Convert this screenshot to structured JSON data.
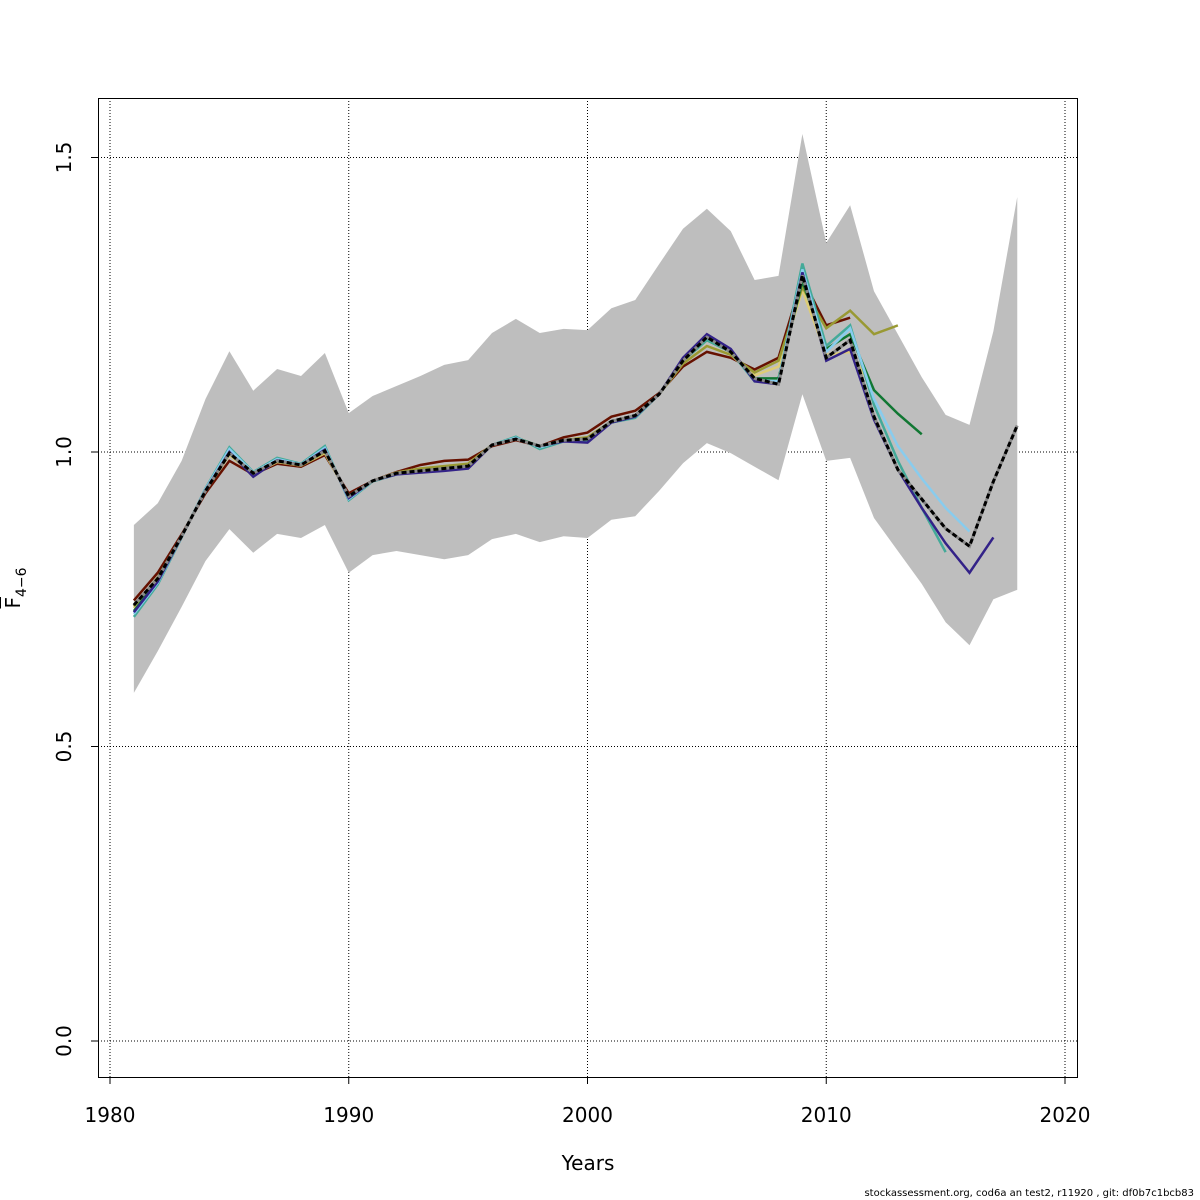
{
  "chart_data": {
    "type": "line",
    "title": "",
    "xlabel": "Years",
    "ylabel": "F̄ 4−6",
    "ylabel_main": "F",
    "ylabel_sub": "4−6",
    "xlim": [
      1979.5,
      2020.5
    ],
    "ylim": [
      -0.06,
      1.6
    ],
    "x_ticks": [
      1980,
      1990,
      2000,
      2010,
      2020
    ],
    "y_ticks": [
      0.0,
      0.5,
      1.0,
      1.5
    ],
    "y_tick_labels": [
      "0.0",
      "0.5",
      "1.0",
      "1.5"
    ],
    "grid": true,
    "confidence_band": {
      "color": "#bebebe",
      "years_start": 1981,
      "upper": [
        0.876,
        0.913,
        0.985,
        1.09,
        1.171,
        1.104,
        1.141,
        1.129,
        1.168,
        1.066,
        1.095,
        1.112,
        1.129,
        1.148,
        1.156,
        1.202,
        1.226,
        1.202,
        1.209,
        1.207,
        1.244,
        1.258,
        1.319,
        1.379,
        1.413,
        1.375,
        1.292,
        1.299,
        1.54,
        1.355,
        1.419,
        1.273,
        1.2,
        1.127,
        1.063,
        1.046,
        1.205,
        1.433
      ],
      "lower": [
        0.591,
        0.662,
        0.737,
        0.815,
        0.869,
        0.829,
        0.861,
        0.854,
        0.876,
        0.795,
        0.825,
        0.832,
        0.825,
        0.818,
        0.825,
        0.852,
        0.861,
        0.847,
        0.857,
        0.854,
        0.885,
        0.891,
        0.934,
        0.981,
        1.015,
        0.998,
        0.975,
        0.952,
        1.098,
        0.985,
        0.99,
        0.888,
        0.832,
        0.776,
        0.711,
        0.672,
        0.75,
        0.766
      ]
    },
    "series": [
      {
        "color": "#661100",
        "start": 1981,
        "values": [
          0.748,
          0.795,
          0.86,
          0.93,
          0.985,
          0.962,
          0.98,
          0.975,
          0.995,
          0.93,
          0.951,
          0.966,
          0.978,
          0.985,
          0.987,
          1.01,
          1.02,
          1.01,
          1.025,
          1.033,
          1.06,
          1.07,
          1.1,
          1.145,
          1.17,
          1.16,
          1.14,
          1.16,
          1.295,
          1.215,
          1.228
        ]
      },
      {
        "color": "#ddcc77",
        "start": 1981,
        "values": [
          0.735,
          0.785,
          0.857,
          0.934,
          0.995,
          0.962,
          0.983,
          0.977,
          0.998,
          0.925,
          0.951,
          0.965,
          0.972,
          0.976,
          0.98,
          1.012,
          1.022,
          1.01,
          1.02,
          1.025,
          1.052,
          1.062,
          1.098,
          1.15,
          1.18,
          1.165,
          1.13,
          1.145,
          1.275,
          1.165,
          1.17,
          1.105
        ]
      },
      {
        "color": "#999933",
        "start": 1981,
        "values": [
          0.738,
          0.787,
          0.857,
          0.934,
          0.997,
          0.963,
          0.984,
          0.977,
          1.0,
          0.925,
          0.951,
          0.965,
          0.972,
          0.976,
          0.98,
          1.012,
          1.022,
          1.01,
          1.02,
          1.025,
          1.052,
          1.062,
          1.098,
          1.15,
          1.18,
          1.165,
          1.135,
          1.155,
          1.28,
          1.21,
          1.24,
          1.2,
          1.215
        ]
      },
      {
        "color": "#117733",
        "start": 1981,
        "values": [
          0.73,
          0.782,
          0.857,
          0.936,
          1.003,
          0.964,
          0.988,
          0.978,
          1.005,
          0.922,
          0.951,
          0.963,
          0.968,
          0.972,
          0.976,
          1.012,
          1.024,
          1.01,
          1.02,
          1.022,
          1.052,
          1.062,
          1.098,
          1.155,
          1.19,
          1.17,
          1.125,
          1.125,
          1.29,
          1.175,
          1.2,
          1.105,
          1.065,
          1.03
        ]
      },
      {
        "color": "#44aa99",
        "start": 1981,
        "values": [
          0.72,
          0.775,
          0.855,
          0.938,
          1.008,
          0.966,
          0.99,
          0.98,
          1.01,
          0.918,
          0.95,
          0.962,
          0.966,
          0.97,
          0.974,
          1.012,
          1.026,
          1.005,
          1.018,
          1.02,
          1.05,
          1.058,
          1.098,
          1.155,
          1.19,
          1.17,
          1.12,
          1.12,
          1.32,
          1.18,
          1.215,
          1.08,
          0.985,
          0.905,
          0.83
        ]
      },
      {
        "color": "#88ccee",
        "start": 1981,
        "values": [
          0.725,
          0.778,
          0.856,
          0.937,
          1.005,
          0.965,
          0.988,
          0.979,
          1.007,
          0.92,
          0.951,
          0.963,
          0.967,
          0.971,
          0.975,
          1.012,
          1.024,
          1.008,
          1.019,
          1.021,
          1.051,
          1.06,
          1.098,
          1.158,
          1.195,
          1.172,
          1.122,
          1.12,
          1.31,
          1.17,
          1.21,
          1.09,
          1.01,
          0.955,
          0.905,
          0.865
        ]
      },
      {
        "color": "#332288",
        "start": 1981,
        "values": [
          0.728,
          0.78,
          0.856,
          0.935,
          1.0,
          0.958,
          0.986,
          0.978,
          1.004,
          0.922,
          0.951,
          0.962,
          0.965,
          0.968,
          0.972,
          1.012,
          1.022,
          1.01,
          1.018,
          1.016,
          1.05,
          1.06,
          1.098,
          1.16,
          1.2,
          1.175,
          1.12,
          1.115,
          1.305,
          1.155,
          1.175,
          1.055,
          0.97,
          0.905,
          0.845,
          0.795,
          0.855
        ]
      },
      {
        "color": "#000000",
        "dashed": true,
        "start": 1981,
        "values": [
          0.74,
          0.785,
          0.857,
          0.934,
          0.998,
          0.964,
          0.985,
          0.978,
          1.002,
          0.925,
          0.951,
          0.964,
          0.968,
          0.972,
          0.976,
          1.012,
          1.022,
          1.01,
          1.02,
          1.022,
          1.052,
          1.062,
          1.098,
          1.155,
          1.195,
          1.17,
          1.125,
          1.115,
          1.3,
          1.16,
          1.19,
          1.06,
          0.97,
          0.92,
          0.87,
          0.84,
          0.95,
          1.045
        ]
      }
    ]
  },
  "footer": "stockassessment.org, cod6a  an  test2, r11920 , git: df0b7c1bcb83"
}
